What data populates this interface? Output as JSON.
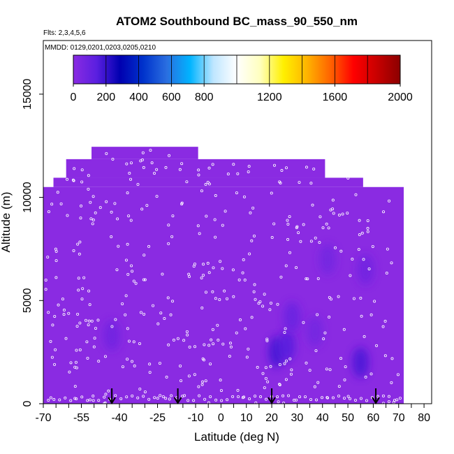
{
  "chart_data": {
    "type": "heatmap",
    "title": "ATOM2 Southbound BC_mass_90_550_nm",
    "subtitle_flights": "Flts: 2,3,4,5,6",
    "subtitle_dates": "MMDD: 0129,0201,0203,0205,0210",
    "xlabel": "Latitude (deg N)",
    "ylabel": "Altitude (m)",
    "xlim": [
      -70,
      83
    ],
    "ylim": [
      0,
      17600
    ],
    "x_tick_labels": [
      "-70",
      "-55",
      "-40",
      "-25",
      "-10",
      "0",
      "10",
      "20",
      "30",
      "40",
      "50",
      "60",
      "70",
      "80"
    ],
    "x_tick_values": [
      -70,
      -55,
      -40,
      -25,
      -10,
      0,
      10,
      20,
      30,
      40,
      50,
      60,
      70,
      80
    ],
    "y_tick_labels": [
      "0",
      "5000",
      "10000",
      "15000"
    ],
    "y_tick_values": [
      0,
      5000,
      10000,
      15000
    ],
    "colorbar": {
      "range": [
        0,
        2000
      ],
      "tick_labels": [
        "0",
        "200",
        "400",
        "600",
        "800",
        "1200",
        "1600",
        "2000"
      ],
      "tick_values": [
        0,
        200,
        400,
        600,
        800,
        1200,
        1600,
        2000
      ],
      "colors": [
        "#8a2be2",
        "#5a1fe0",
        "#0000b0",
        "#0033cc",
        "#2a6ee0",
        "#00b4ff",
        "#bfe6ff",
        "#ffffff",
        "#ffffbe",
        "#fff000",
        "#ffb400",
        "#ff6400",
        "#ff0000",
        "#c80000",
        "#8b0000"
      ]
    },
    "background_value": 0,
    "field_color": "#8a2be2",
    "coverage": [
      {
        "lat_min": -70,
        "lat_max": 72,
        "alt_min": 0,
        "alt_max": 10500
      },
      {
        "lat_min": -66,
        "lat_max": 56,
        "alt_min": 10500,
        "alt_max": 10950
      },
      {
        "lat_min": -61,
        "lat_max": 41,
        "alt_min": 10950,
        "alt_max": 11850
      },
      {
        "lat_min": -51,
        "lat_max": -9,
        "alt_min": 11850,
        "alt_max": 12450
      }
    ],
    "enhanced_regions": [
      {
        "lat": -43,
        "alt": 3300,
        "value": 80
      },
      {
        "lat": 22,
        "alt": 2500,
        "value": 180
      },
      {
        "lat": 26,
        "alt": 2800,
        "value": 150
      },
      {
        "lat": 28,
        "alt": 4200,
        "value": 100
      },
      {
        "lat": 42,
        "alt": 7000,
        "value": 70
      },
      {
        "lat": 55,
        "alt": 2000,
        "value": 170
      },
      {
        "lat": 57,
        "alt": 6500,
        "value": 80
      },
      {
        "lat": 37,
        "alt": 3500,
        "value": 70
      }
    ],
    "flight_marker_lats": [
      -43,
      -17,
      20,
      61
    ],
    "grid": false,
    "legend": "colorbar top, inside plot"
  }
}
